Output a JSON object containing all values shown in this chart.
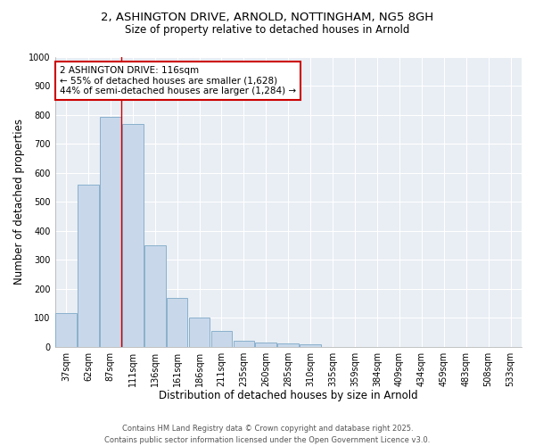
{
  "title_line1": "2, ASHINGTON DRIVE, ARNOLD, NOTTINGHAM, NG5 8GH",
  "title_line2": "Size of property relative to detached houses in Arnold",
  "xlabel": "Distribution of detached houses by size in Arnold",
  "ylabel": "Number of detached properties",
  "categories": [
    "37sqm",
    "62sqm",
    "87sqm",
    "111sqm",
    "136sqm",
    "161sqm",
    "186sqm",
    "211sqm",
    "235sqm",
    "260sqm",
    "285sqm",
    "310sqm",
    "335sqm",
    "359sqm",
    "384sqm",
    "409sqm",
    "434sqm",
    "459sqm",
    "483sqm",
    "508sqm",
    "533sqm"
  ],
  "values": [
    115,
    560,
    795,
    770,
    350,
    168,
    100,
    55,
    20,
    15,
    10,
    8,
    0,
    0,
    0,
    0,
    0,
    0,
    0,
    0,
    0
  ],
  "bar_color": "#c8d8ea",
  "bar_edge_color": "#8ab0cc",
  "bar_edge_width": 0.7,
  "red_line_x": 3.0,
  "red_line_color": "#cc0000",
  "ylim": [
    0,
    1000
  ],
  "yticks": [
    0,
    100,
    200,
    300,
    400,
    500,
    600,
    700,
    800,
    900,
    1000
  ],
  "annotation_text": "2 ASHINGTON DRIVE: 116sqm\n← 55% of detached houses are smaller (1,628)\n44% of semi-detached houses are larger (1,284) →",
  "annotation_box_facecolor": "#ffffff",
  "annotation_box_edgecolor": "#cc0000",
  "footer_line1": "Contains HM Land Registry data © Crown copyright and database right 2025.",
  "footer_line2": "Contains public sector information licensed under the Open Government Licence v3.0.",
  "plot_bg_color": "#e8eef4",
  "fig_bg_color": "#ffffff",
  "grid_color": "#ffffff",
  "title1_fontsize": 9.5,
  "title2_fontsize": 8.5,
  "xlabel_fontsize": 8.5,
  "ylabel_fontsize": 8.5,
  "tick_fontsize": 7,
  "annotation_fontsize": 7.5,
  "footer_fontsize": 6
}
